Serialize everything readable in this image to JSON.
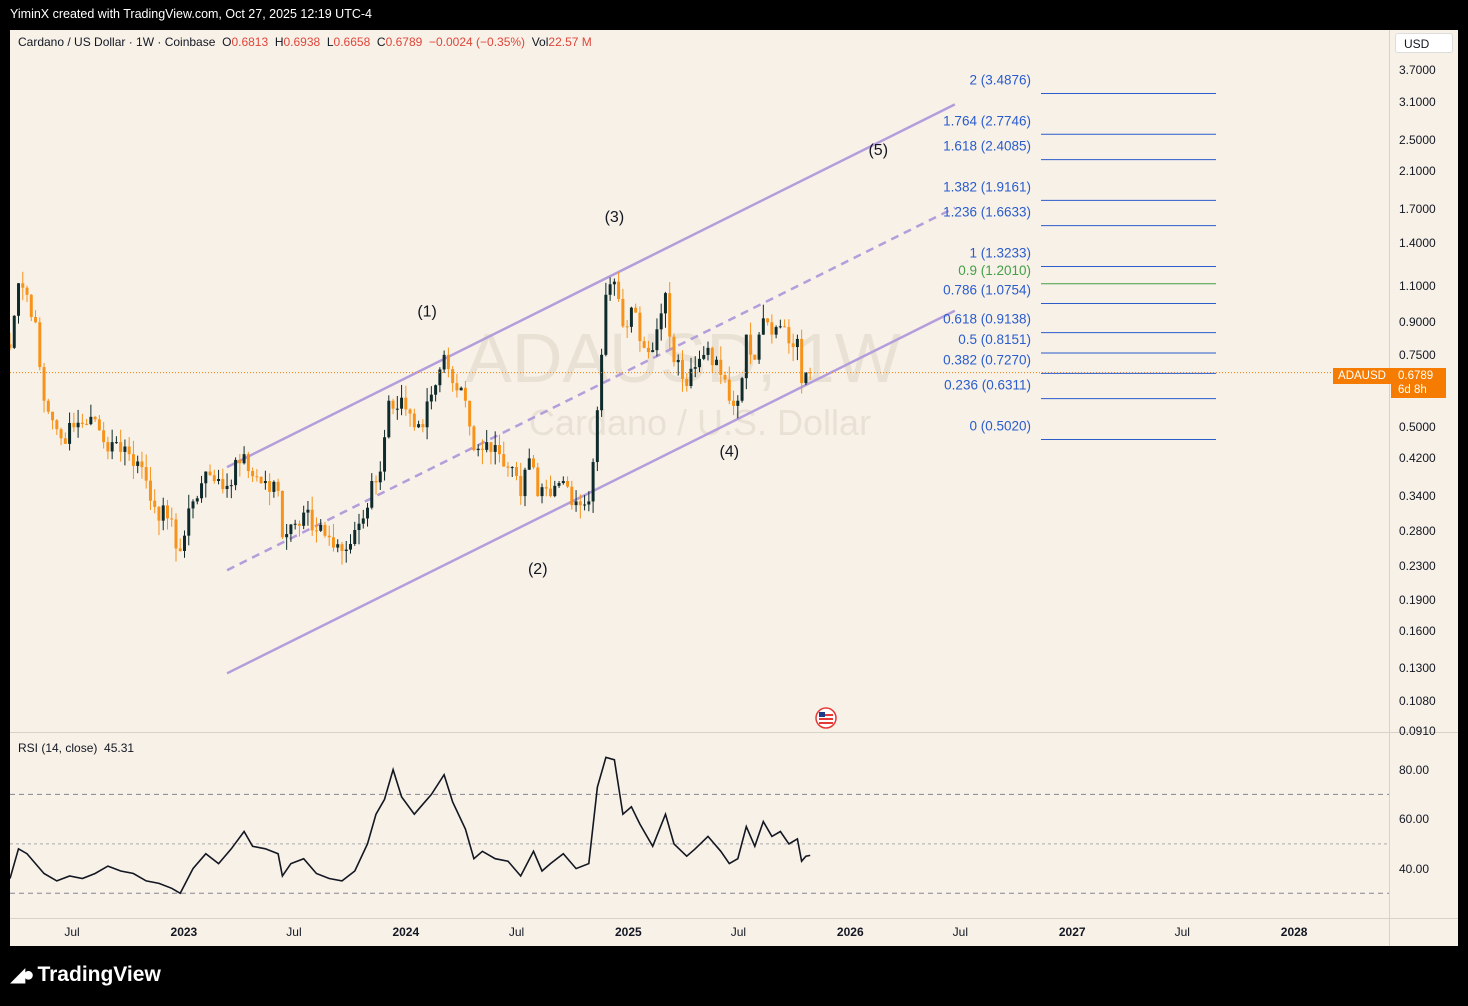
{
  "header": {
    "attribution": "YiminX created with TradingView.com, Oct 27, 2025 12:19 UTC-4"
  },
  "legend": {
    "symbol": "Cardano / US Dollar · 1W · Coinbase",
    "o_label": "O",
    "o_value": "0.6813",
    "h_label": "H",
    "h_value": "0.6938",
    "l_label": "L",
    "l_value": "0.6658",
    "c_label": "C",
    "c_value": "0.6789",
    "change": "−0.0024 (−0.35%)",
    "vol_label": "Vol",
    "vol_value": "22.57 M"
  },
  "currency_button": "USD",
  "price_axis_ticks": [
    "3.7000",
    "3.1000",
    "2.5000",
    "2.1000",
    "1.7000",
    "1.4000",
    "1.1000",
    "0.9000",
    "0.7500",
    "0.5000",
    "0.4200",
    "0.3400",
    "0.2800",
    "0.2300",
    "0.1900",
    "0.1600",
    "0.1300",
    "0.1080",
    "0.0910"
  ],
  "last_price": {
    "ticker": "ADAUSD",
    "price": "0.6789",
    "countdown": "6d 8h"
  },
  "watermark": {
    "symbol": "ADAUSD, 1W",
    "name": "Cardano / U.S. Dollar"
  },
  "fib_levels": [
    {
      "label": "2 (3.4876)",
      "price": 3.4876,
      "color": "#2a5ccc"
    },
    {
      "label": "1.764 (2.7746)",
      "price": 2.7746,
      "color": "#2a5ccc"
    },
    {
      "label": "1.618 (2.4085)",
      "price": 2.4085,
      "color": "#2a5ccc"
    },
    {
      "label": "1.382 (1.9161)",
      "price": 1.9161,
      "color": "#2a5ccc"
    },
    {
      "label": "1.236 (1.6633)",
      "price": 1.6633,
      "color": "#2a5ccc"
    },
    {
      "label": "1 (1.3233)",
      "price": 1.3233,
      "color": "#2a5ccc"
    },
    {
      "label": "0.9 (1.2010)",
      "price": 1.201,
      "color": "#43a047"
    },
    {
      "label": "0.786 (1.0754)",
      "price": 1.0754,
      "color": "#2a5ccc"
    },
    {
      "label": "0.618 (0.9138)",
      "price": 0.9138,
      "color": "#2a5ccc"
    },
    {
      "label": "0.5 (0.8151)",
      "price": 0.8151,
      "color": "#2a5ccc"
    },
    {
      "label": "0.382 (0.7270)",
      "price": 0.727,
      "color": "#2a5ccc"
    },
    {
      "label": "0.236 (0.6311)",
      "price": 0.6311,
      "color": "#2a5ccc"
    },
    {
      "label": "0 (0.5020)",
      "price": 0.502,
      "color": "#2a5ccc"
    }
  ],
  "wave_labels": [
    {
      "text": "(1)",
      "date": "2024-02-05",
      "price": 0.93
    },
    {
      "text": "(2)",
      "date": "2024-08-05",
      "price": 0.22
    },
    {
      "text": "(3)",
      "date": "2024-12-09",
      "price": 1.58
    },
    {
      "text": "(4)",
      "date": "2025-06-16",
      "price": 0.425
    },
    {
      "text": "(5)",
      "date": "2026-02-16",
      "price": 2.3
    }
  ],
  "rsi": {
    "title": "RSI (14, close)",
    "value": "45.31",
    "ticks": [
      "80.00",
      "60.00",
      "40.00"
    ],
    "bands": [
      70,
      50,
      30
    ]
  },
  "time_axis": [
    {
      "label": "Jul",
      "year": false
    },
    {
      "label": "2023",
      "year": true
    },
    {
      "label": "Jul",
      "year": false
    },
    {
      "label": "2024",
      "year": true
    },
    {
      "label": "Jul",
      "year": false
    },
    {
      "label": "2025",
      "year": true
    },
    {
      "label": "Jul",
      "year": false
    },
    {
      "label": "2026",
      "year": true
    },
    {
      "label": "Jul",
      "year": false
    },
    {
      "label": "2027",
      "year": true
    },
    {
      "label": "Jul",
      "year": false
    },
    {
      "label": "2028",
      "year": true
    }
  ],
  "brand": "TradingView",
  "chart_data": {
    "type": "candlestick",
    "symbol": "ADAUSD",
    "interval": "1W",
    "y_scale": "log",
    "ylim": [
      0.0907,
      4.0
    ],
    "x_range": [
      "2022-03-21",
      "2028-06-05"
    ],
    "rsi_ylim": [
      20,
      90
    ],
    "colors": {
      "up": "#0e2a2a",
      "down": "#f7931a",
      "channel": "#b39ddb",
      "rsi": "#131722",
      "last_price_line": "#f57c00"
    },
    "channel": {
      "upper": [
        [
          "2023-03-13",
          0.4
        ],
        [
          "2026-06-22",
          3.05
        ]
      ],
      "middle": [
        [
          "2023-03-13",
          0.2245
        ],
        [
          "2026-06-22",
          1.71
        ]
      ],
      "lower": [
        [
          "2023-03-13",
          0.126
        ],
        [
          "2026-06-22",
          0.96
        ]
      ]
    },
    "close_series": [
      [
        "2022-03-21",
        0.78
      ],
      [
        "2022-04-04",
        1.12
      ],
      [
        "2022-04-18",
        1.05
      ],
      [
        "2022-05-02",
        0.9
      ],
      [
        "2022-05-16",
        0.58
      ],
      [
        "2022-05-30",
        0.52
      ],
      [
        "2022-06-13",
        0.47
      ],
      [
        "2022-07-04",
        0.5
      ],
      [
        "2022-08-01",
        0.53
      ],
      [
        "2022-08-22",
        0.46
      ],
      [
        "2022-09-12",
        0.46
      ],
      [
        "2022-10-03",
        0.43
      ],
      [
        "2022-10-24",
        0.4
      ],
      [
        "2022-11-14",
        0.32
      ],
      [
        "2022-12-05",
        0.3
      ],
      [
        "2022-12-26",
        0.25
      ],
      [
        "2023-01-16",
        0.33
      ],
      [
        "2023-02-06",
        0.39
      ],
      [
        "2023-02-20",
        0.37
      ],
      [
        "2023-03-13",
        0.36
      ],
      [
        "2023-04-10",
        0.43
      ],
      [
        "2023-04-24",
        0.38
      ],
      [
        "2023-05-15",
        0.37
      ],
      [
        "2023-06-05",
        0.35
      ],
      [
        "2023-06-12",
        0.27
      ],
      [
        "2023-06-26",
        0.29
      ],
      [
        "2023-07-17",
        0.31
      ],
      [
        "2023-08-07",
        0.28
      ],
      [
        "2023-08-28",
        0.27
      ],
      [
        "2023-09-18",
        0.25
      ],
      [
        "2023-10-02",
        0.26
      ],
      [
        "2023-10-23",
        0.3
      ],
      [
        "2023-11-06",
        0.37
      ],
      [
        "2023-11-20",
        0.39
      ],
      [
        "2023-12-04",
        0.58
      ],
      [
        "2023-12-25",
        0.59
      ],
      [
        "2024-01-15",
        0.5
      ],
      [
        "2024-01-29",
        0.5
      ],
      [
        "2024-02-12",
        0.6
      ],
      [
        "2024-03-04",
        0.75
      ],
      [
        "2024-03-18",
        0.64
      ],
      [
        "2024-04-08",
        0.58
      ],
      [
        "2024-04-22",
        0.44
      ],
      [
        "2024-05-13",
        0.46
      ],
      [
        "2024-06-03",
        0.43
      ],
      [
        "2024-06-24",
        0.4
      ],
      [
        "2024-07-08",
        0.34
      ],
      [
        "2024-07-22",
        0.42
      ],
      [
        "2024-08-05",
        0.34
      ],
      [
        "2024-08-26",
        0.34
      ],
      [
        "2024-09-16",
        0.37
      ],
      [
        "2024-10-07",
        0.33
      ],
      [
        "2024-10-28",
        0.33
      ],
      [
        "2024-11-11",
        0.55
      ],
      [
        "2024-11-25",
        1.05
      ],
      [
        "2024-12-09",
        1.13
      ],
      [
        "2024-12-23",
        0.88
      ],
      [
        "2025-01-13",
        0.95
      ],
      [
        "2025-01-27",
        0.78
      ],
      [
        "2025-02-10",
        0.77
      ],
      [
        "2025-03-03",
        1.06
      ],
      [
        "2025-03-17",
        0.72
      ],
      [
        "2025-04-07",
        0.63
      ],
      [
        "2025-04-21",
        0.7
      ],
      [
        "2025-05-12",
        0.78
      ],
      [
        "2025-06-02",
        0.67
      ],
      [
        "2025-06-16",
        0.58
      ],
      [
        "2025-06-30",
        0.58
      ],
      [
        "2025-07-14",
        0.84
      ],
      [
        "2025-07-28",
        0.73
      ],
      [
        "2025-08-11",
        0.92
      ],
      [
        "2025-08-25",
        0.84
      ],
      [
        "2025-09-08",
        0.88
      ],
      [
        "2025-09-22",
        0.8
      ],
      [
        "2025-10-06",
        0.82
      ],
      [
        "2025-10-13",
        0.64
      ],
      [
        "2025-10-20",
        0.68
      ],
      [
        "2025-10-27",
        0.6789
      ]
    ],
    "rsi_series": [
      [
        "2022-03-21",
        36
      ],
      [
        "2022-04-04",
        48
      ],
      [
        "2022-04-18",
        46
      ],
      [
        "2022-05-02",
        42
      ],
      [
        "2022-05-16",
        38
      ],
      [
        "2022-06-06",
        35
      ],
      [
        "2022-06-27",
        37
      ],
      [
        "2022-07-18",
        36
      ],
      [
        "2022-08-08",
        38
      ],
      [
        "2022-08-29",
        41
      ],
      [
        "2022-09-19",
        39
      ],
      [
        "2022-10-10",
        38
      ],
      [
        "2022-10-31",
        35
      ],
      [
        "2022-11-21",
        34
      ],
      [
        "2022-12-12",
        32
      ],
      [
        "2022-12-26",
        30
      ],
      [
        "2023-01-16",
        40
      ],
      [
        "2023-02-06",
        46
      ],
      [
        "2023-02-27",
        42
      ],
      [
        "2023-03-20",
        48
      ],
      [
        "2023-04-10",
        55
      ],
      [
        "2023-04-24",
        49
      ],
      [
        "2023-05-15",
        48
      ],
      [
        "2023-06-05",
        46
      ],
      [
        "2023-06-12",
        37
      ],
      [
        "2023-06-26",
        42
      ],
      [
        "2023-07-17",
        44
      ],
      [
        "2023-08-07",
        38
      ],
      [
        "2023-08-28",
        36
      ],
      [
        "2023-09-18",
        35
      ],
      [
        "2023-10-09",
        39
      ],
      [
        "2023-10-30",
        50
      ],
      [
        "2023-11-13",
        62
      ],
      [
        "2023-11-27",
        68
      ],
      [
        "2023-12-11",
        80
      ],
      [
        "2023-12-25",
        69
      ],
      [
        "2024-01-15",
        62
      ],
      [
        "2024-01-29",
        66
      ],
      [
        "2024-02-12",
        70
      ],
      [
        "2024-03-04",
        78
      ],
      [
        "2024-03-18",
        67
      ],
      [
        "2024-04-08",
        56
      ],
      [
        "2024-04-22",
        44
      ],
      [
        "2024-05-06",
        47
      ],
      [
        "2024-05-27",
        44
      ],
      [
        "2024-06-17",
        43
      ],
      [
        "2024-07-08",
        37
      ],
      [
        "2024-07-29",
        47
      ],
      [
        "2024-08-12",
        39
      ],
      [
        "2024-08-26",
        42
      ],
      [
        "2024-09-16",
        46
      ],
      [
        "2024-10-07",
        40
      ],
      [
        "2024-10-28",
        42
      ],
      [
        "2024-11-11",
        73
      ],
      [
        "2024-11-25",
        85
      ],
      [
        "2024-12-09",
        84
      ],
      [
        "2024-12-23",
        62
      ],
      [
        "2025-01-06",
        65
      ],
      [
        "2025-01-20",
        58
      ],
      [
        "2025-02-10",
        49
      ],
      [
        "2025-03-03",
        62
      ],
      [
        "2025-03-17",
        50
      ],
      [
        "2025-04-07",
        45
      ],
      [
        "2025-04-21",
        48
      ],
      [
        "2025-05-12",
        53
      ],
      [
        "2025-06-02",
        47
      ],
      [
        "2025-06-16",
        42
      ],
      [
        "2025-06-30",
        44
      ],
      [
        "2025-07-14",
        57
      ],
      [
        "2025-07-28",
        49
      ],
      [
        "2025-08-11",
        59
      ],
      [
        "2025-08-25",
        53
      ],
      [
        "2025-09-08",
        55
      ],
      [
        "2025-09-22",
        50
      ],
      [
        "2025-10-06",
        52
      ],
      [
        "2025-10-13",
        43
      ],
      [
        "2025-10-20",
        45
      ],
      [
        "2025-10-27",
        45.31
      ]
    ]
  }
}
